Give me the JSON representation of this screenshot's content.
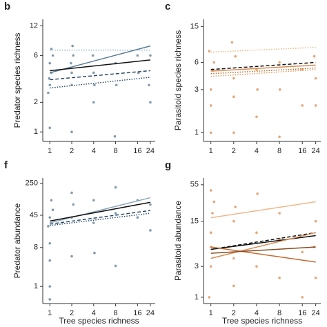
{
  "chart_data": [
    {
      "type": "scatter",
      "panel": "b",
      "ylabel": "Predator species richness",
      "xlog": true,
      "ylog": true,
      "xlim": [
        0.8,
        28
      ],
      "xticks": [
        1,
        2,
        4,
        8,
        16,
        24
      ],
      "ylim": [
        0.8,
        14
      ],
      "yticks": [
        1,
        2,
        6,
        12
      ],
      "points": {
        "color": "#5a7a90",
        "x": [
          1,
          1.05,
          0.95,
          1,
          1.1,
          1,
          0.98,
          2,
          2.1,
          1.95,
          2,
          2,
          4,
          4.1,
          3.9,
          4,
          8,
          8.2,
          7.8,
          16,
          16.5,
          24,
          23,
          24,
          1.05,
          2.05
        ],
        "values": [
          3,
          4,
          2.5,
          5,
          6,
          1.1,
          3.5,
          4,
          6,
          5,
          3,
          1,
          4,
          3,
          6,
          2,
          5,
          3,
          0.9,
          6,
          4,
          6,
          3,
          2,
          7,
          7.5
        ]
      },
      "series": [
        {
          "color": "#8fb3cc",
          "style": "dotted",
          "x": [
            1,
            24
          ],
          "values": [
            6.8,
            6.8
          ]
        },
        {
          "color": "#5b7d96",
          "style": "solid",
          "x": [
            1,
            24
          ],
          "values": [
            4.0,
            7.5
          ]
        },
        {
          "color": "#111111",
          "style": "solid",
          "x": [
            1,
            24
          ],
          "values": [
            4.2,
            5.4
          ]
        },
        {
          "color": "#2b4a66",
          "style": "dashed",
          "x": [
            1,
            24
          ],
          "values": [
            3.4,
            4.2
          ]
        },
        {
          "color": "#2b4a66",
          "style": "dotted",
          "x": [
            1,
            24
          ],
          "values": [
            2.8,
            3.6
          ]
        }
      ]
    },
    {
      "type": "scatter",
      "panel": "c",
      "ylabel": "Parasitoid species richness",
      "xlog": true,
      "ylog": true,
      "xlim": [
        0.8,
        28
      ],
      "xticks": [
        1,
        2,
        4,
        8,
        16,
        24
      ],
      "ylim": [
        0.8,
        18
      ],
      "yticks": [
        1,
        3,
        6,
        15
      ],
      "points": {
        "color": "#d98a4e",
        "x": [
          1,
          1.05,
          0.95,
          1,
          1,
          1.1,
          2,
          2.1,
          2,
          1.9,
          4,
          4.1,
          4,
          8,
          8.1,
          8,
          16,
          16,
          24,
          24,
          23,
          2
        ],
        "values": [
          3,
          5,
          8,
          2,
          1,
          6,
          4,
          7,
          2.5,
          10,
          5,
          3,
          1.5,
          6,
          3,
          0.9,
          2,
          5,
          4,
          2,
          7,
          1
        ]
      },
      "series": [
        {
          "color": "#f0b88a",
          "style": "dotted",
          "x": [
            1,
            24
          ],
          "values": [
            7.8,
            8.8
          ]
        },
        {
          "color": "#111111",
          "style": "dashed",
          "x": [
            1,
            24
          ],
          "values": [
            5.0,
            6.0
          ]
        },
        {
          "color": "#d98a4e",
          "style": "solid",
          "x": [
            1,
            24
          ],
          "values": [
            4.8,
            5.6
          ]
        },
        {
          "color": "#c06a2e",
          "style": "dotted",
          "x": [
            1,
            24
          ],
          "values": [
            4.5,
            5.2
          ]
        },
        {
          "color": "#e39a60",
          "style": "dotted",
          "x": [
            1,
            24
          ],
          "values": [
            4.2,
            5.0
          ]
        }
      ]
    },
    {
      "type": "scatter",
      "panel": "f",
      "ylabel": "Predator abundance",
      "xlabel": "Tree species richness",
      "xlog": true,
      "ylog": true,
      "xlim": [
        0.8,
        28
      ],
      "xticks": [
        1,
        2,
        4,
        8,
        16,
        24
      ],
      "ylim": [
        0.4,
        330
      ],
      "yticks": [
        1,
        8,
        45,
        250
      ],
      "points": {
        "color": "#5a7a90",
        "x": [
          1,
          1,
          1.05,
          0.95,
          1,
          1,
          1.1,
          2,
          2,
          2.1,
          2,
          4,
          4,
          4.1,
          8,
          8,
          8,
          16,
          16,
          24,
          24,
          1
        ],
        "values": [
          40,
          10,
          100,
          25,
          4,
          0.5,
          60,
          150,
          40,
          80,
          5,
          100,
          30,
          6,
          200,
          50,
          3,
          40,
          100,
          80,
          20,
          1
        ]
      },
      "series": [
        {
          "color": "#8aa6ba",
          "style": "solid",
          "x": [
            1,
            24
          ],
          "values": [
            30,
            115
          ]
        },
        {
          "color": "#111111",
          "style": "solid",
          "x": [
            1,
            24
          ],
          "values": [
            33,
            90
          ]
        },
        {
          "color": "#2b4a66",
          "style": "dashed",
          "x": [
            1,
            24
          ],
          "values": [
            28,
            58
          ]
        },
        {
          "color": "#2b4a66",
          "style": "dotted",
          "x": [
            1,
            24
          ],
          "values": [
            26,
            50
          ]
        }
      ]
    },
    {
      "type": "scatter",
      "panel": "g",
      "ylabel": "Parasitoid abundance",
      "xlabel": "Tree species richness",
      "xlog": true,
      "ylog": true,
      "xlim": [
        0.8,
        28
      ],
      "xticks": [
        1,
        2,
        4,
        8,
        16,
        24
      ],
      "ylim": [
        0.8,
        70
      ],
      "yticks": [
        1,
        3,
        15,
        55
      ],
      "points": {
        "color": "#d98a4e",
        "x": [
          1,
          1,
          1.05,
          0.95,
          1,
          1.1,
          2,
          2,
          2.1,
          2,
          4,
          4,
          4.1,
          8,
          8,
          8,
          16,
          16,
          24,
          24,
          23,
          1
        ],
        "values": [
          10,
          3,
          20,
          1,
          6,
          30,
          15,
          4,
          25,
          1.5,
          10,
          3,
          40,
          8,
          2,
          20,
          5,
          1,
          15,
          2,
          6,
          45
        ]
      },
      "series": [
        {
          "color": "#f0b88a",
          "style": "solid",
          "x": [
            1,
            24
          ],
          "values": [
            17,
            30
          ]
        },
        {
          "color": "#111111",
          "style": "dashed",
          "x": [
            1,
            24
          ],
          "values": [
            5.5,
            10
          ]
        },
        {
          "color": "#111111",
          "style": "solid",
          "x": [
            1,
            24
          ],
          "values": [
            5.5,
            9
          ]
        },
        {
          "color": "#d98a4e",
          "style": "solid",
          "x": [
            1,
            24
          ],
          "values": [
            4,
            10
          ]
        },
        {
          "color": "#c06a2e",
          "style": "solid",
          "x": [
            1,
            24
          ],
          "values": [
            6,
            3.5
          ]
        },
        {
          "color": "#8a4a20",
          "style": "solid",
          "x": [
            1,
            24
          ],
          "values": [
            4.8,
            6
          ]
        }
      ]
    }
  ]
}
